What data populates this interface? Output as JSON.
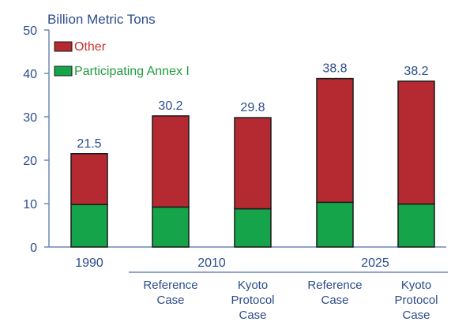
{
  "chart_data": {
    "type": "bar",
    "stacked": true,
    "ylabel": "Billion Metric Tons",
    "ylim": [
      0,
      50
    ],
    "yticks": [
      0,
      10,
      20,
      30,
      40,
      50
    ],
    "grid": false,
    "legend_position": "top-left",
    "colors": {
      "other": "#b52a30",
      "annex": "#16a44b",
      "axis_text": "#2b4b8c",
      "edge": "#1a1a1a"
    },
    "series": [
      {
        "name": "Other",
        "values": [
          11.7,
          21.0,
          21.0,
          28.5,
          28.3
        ]
      },
      {
        "name": "Participating Annex I",
        "values": [
          9.8,
          9.2,
          8.8,
          10.3,
          9.9
        ]
      }
    ],
    "categories": [
      "1990",
      "Reference Case",
      "Kyoto Protocol Case",
      "Reference Case",
      "Kyoto Protocol Case"
    ],
    "totals": [
      "21.5",
      "30.2",
      "29.8",
      "38.8",
      "38.2"
    ],
    "groups": [
      {
        "label": "1990"
      },
      {
        "label": "2010",
        "subs": [
          [
            "Reference",
            "Case"
          ],
          [
            "Kyoto",
            "Protocol",
            "Case"
          ]
        ]
      },
      {
        "label": "2025",
        "subs": [
          [
            "Reference",
            "Case"
          ],
          [
            "Kyoto",
            "Protocol",
            "Case"
          ]
        ]
      }
    ]
  }
}
